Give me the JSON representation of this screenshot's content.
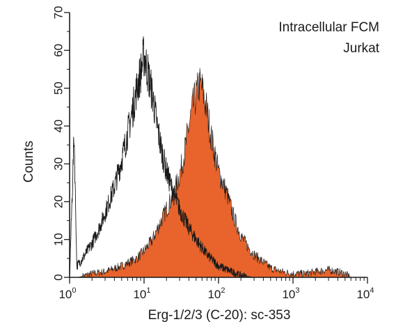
{
  "chart_data": {
    "type": "area",
    "title": "",
    "annotations": [
      "Intracellular FCM",
      "Jurkat"
    ],
    "xlabel": "Erg-1/2/3 (C-20): sc-353",
    "ylabel": "Counts",
    "x_scale": "log",
    "xlim": [
      1,
      10000
    ],
    "ylim": [
      0,
      70
    ],
    "x_ticks": [
      {
        "base": "10",
        "exp": "0",
        "value": 1
      },
      {
        "base": "10",
        "exp": "1",
        "value": 10
      },
      {
        "base": "10",
        "exp": "2",
        "value": 100
      },
      {
        "base": "10",
        "exp": "3",
        "value": 1000
      },
      {
        "base": "10",
        "exp": "4",
        "value": 10000
      }
    ],
    "y_ticks": [
      "0",
      "10",
      "20",
      "30",
      "40",
      "50",
      "60",
      "70"
    ],
    "grid": false,
    "series": [
      {
        "style": "outline",
        "color": "#1a1a1a",
        "points": [
          [
            1,
            0
          ],
          [
            1.15,
            38
          ],
          [
            1.25,
            3
          ],
          [
            1.5,
            5
          ],
          [
            2,
            9
          ],
          [
            2.5,
            13
          ],
          [
            3,
            17
          ],
          [
            4,
            24
          ],
          [
            5,
            31
          ],
          [
            6,
            38
          ],
          [
            7,
            44
          ],
          [
            8,
            50
          ],
          [
            9,
            54
          ],
          [
            10,
            59
          ],
          [
            11,
            55
          ],
          [
            13,
            48
          ],
          [
            15,
            40
          ],
          [
            17,
            34
          ],
          [
            20,
            28
          ],
          [
            25,
            22
          ],
          [
            30,
            18
          ],
          [
            40,
            13
          ],
          [
            50,
            10
          ],
          [
            70,
            6
          ],
          [
            100,
            3
          ],
          [
            150,
            1.5
          ],
          [
            200,
            0.5
          ],
          [
            300,
            0
          ]
        ]
      },
      {
        "style": "filled",
        "color": "#e8642c",
        "points": [
          [
            1,
            0
          ],
          [
            1.3,
            0
          ],
          [
            2,
            1
          ],
          [
            3,
            1.5
          ],
          [
            5,
            3
          ],
          [
            8,
            5
          ],
          [
            10,
            7
          ],
          [
            13,
            10
          ],
          [
            17,
            15
          ],
          [
            20,
            18
          ],
          [
            25,
            22
          ],
          [
            30,
            27
          ],
          [
            35,
            33
          ],
          [
            40,
            40
          ],
          [
            45,
            45
          ],
          [
            50,
            48
          ],
          [
            55,
            51
          ],
          [
            60,
            50
          ],
          [
            70,
            44
          ],
          [
            80,
            37
          ],
          [
            100,
            28
          ],
          [
            130,
            22
          ],
          [
            160,
            16
          ],
          [
            200,
            11
          ],
          [
            250,
            8
          ],
          [
            300,
            6
          ],
          [
            400,
            4
          ],
          [
            500,
            2.5
          ],
          [
            700,
            1.5
          ],
          [
            1000,
            1
          ],
          [
            1500,
            1
          ],
          [
            2000,
            1.5
          ],
          [
            3000,
            2
          ],
          [
            4000,
            1.5
          ],
          [
            5000,
            1
          ],
          [
            6000,
            0
          ]
        ]
      }
    ]
  }
}
